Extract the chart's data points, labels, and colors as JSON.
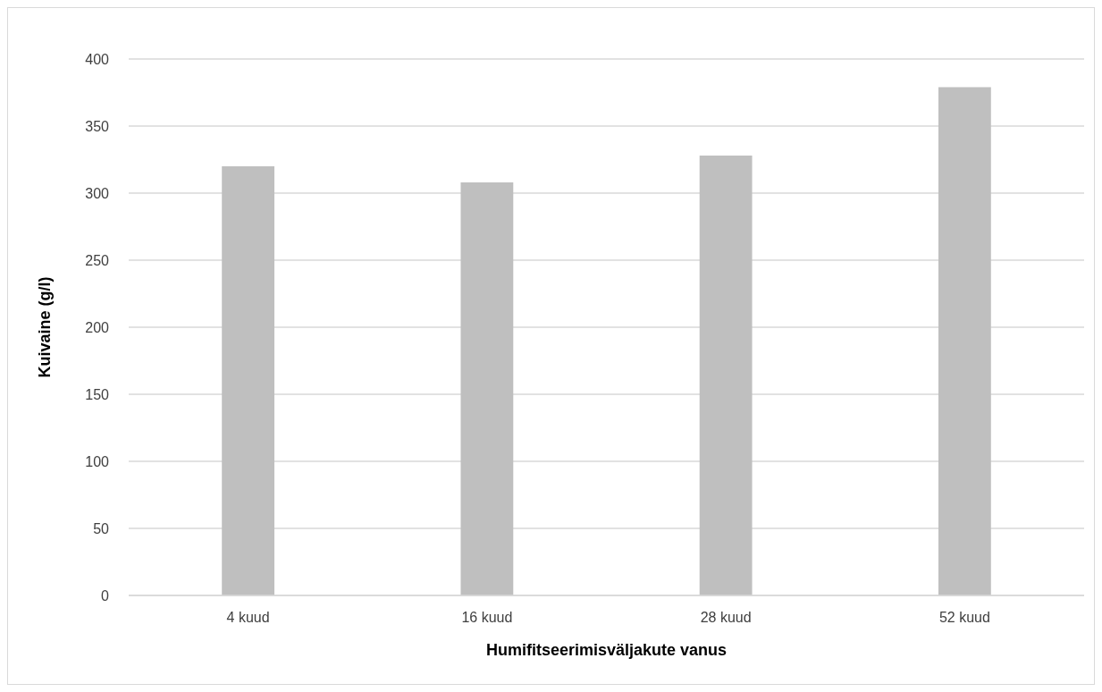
{
  "chart_data": {
    "type": "bar",
    "xlabel": "Humifitseerimisväljakute vanus",
    "ylabel": "Kuivaine (g/l)",
    "categories": [
      "4 kuud",
      "16 kuud",
      "28 kuud",
      "52 kuud"
    ],
    "values": [
      320,
      308,
      328,
      379
    ],
    "color": "#bfbfbf",
    "ylim": [
      0,
      400
    ],
    "yticks": [
      0,
      50,
      100,
      150,
      200,
      250,
      300,
      350,
      400
    ],
    "grid": "y"
  }
}
